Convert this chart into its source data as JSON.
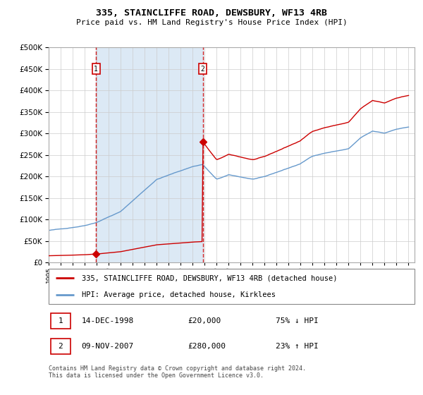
{
  "title": "335, STAINCLIFFE ROAD, DEWSBURY, WF13 4RB",
  "subtitle": "Price paid vs. HM Land Registry's House Price Index (HPI)",
  "legend_line1": "335, STAINCLIFFE ROAD, DEWSBURY, WF13 4RB (detached house)",
  "legend_line2": "HPI: Average price, detached house, Kirklees",
  "transaction1_date": "14-DEC-1998",
  "transaction1_price": 20000,
  "transaction1_note": "75% ↓ HPI",
  "transaction2_date": "09-NOV-2007",
  "transaction2_price": 280000,
  "transaction2_note": "23% ↑ HPI",
  "footer": "Contains HM Land Registry data © Crown copyright and database right 2024.\nThis data is licensed under the Open Government Licence v3.0.",
  "bg_color": "#dce9f5",
  "plot_bg": "#ffffff",
  "red_color": "#cc0000",
  "blue_color": "#6699cc",
  "grid_color": "#cccccc",
  "ylim": [
    0,
    500000
  ],
  "yticks": [
    0,
    50000,
    100000,
    150000,
    200000,
    250000,
    300000,
    350000,
    400000,
    450000,
    500000
  ],
  "xmin": 1995.0,
  "xmax": 2025.5
}
